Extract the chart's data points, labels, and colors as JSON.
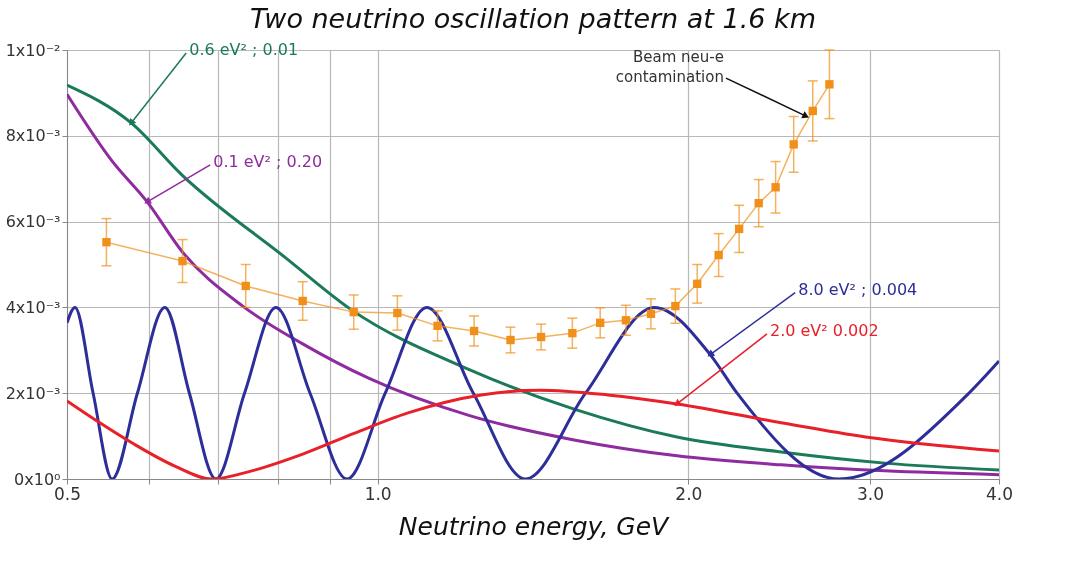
{
  "chart_data": {
    "type": "line",
    "title": "Two neutrino oscillation pattern at 1.6 km",
    "xlabel": "Neutrino energy, GeV",
    "log": "x",
    "grid": true,
    "xlim": [
      0.5,
      4.0
    ],
    "xticks": [
      {
        "value": 0.5,
        "label": "0.5"
      },
      {
        "value": 0.6,
        "label": null
      },
      {
        "value": 0.7,
        "label": null
      },
      {
        "value": 0.8,
        "label": null
      },
      {
        "value": 0.9,
        "label": null
      },
      {
        "value": 1.0,
        "label": "1.0"
      },
      {
        "value": 2.0,
        "label": "2.0"
      },
      {
        "value": 3.0,
        "label": "3.0"
      },
      {
        "value": 4.0,
        "label": "4.0"
      }
    ],
    "ylim": [
      0,
      0.01
    ],
    "yticks": [
      {
        "value": 0,
        "label": "0x10⁰"
      },
      {
        "value": 0.002,
        "label": "2x10⁻³"
      },
      {
        "value": 0.004,
        "label": "4x10⁻³"
      },
      {
        "value": 0.006,
        "label": "6x10⁻³"
      },
      {
        "value": 0.008,
        "label": "8x10⁻³"
      },
      {
        "value": 0.01,
        "label": "1x10⁻²"
      }
    ],
    "series": [
      {
        "name": "0.6 eV² ; 0.01",
        "marker": "none",
        "color": "#1b7a58",
        "x": [
          0.5,
          0.577,
          0.646,
          0.815,
          0.941,
          1.23,
          1.55,
          1.95,
          2.46,
          3.1,
          4.0
        ],
        "values": [
          0.00918,
          0.0083,
          0.00709,
          0.00515,
          0.00396,
          0.00254,
          0.00163,
          0.00098,
          0.00063,
          0.00037,
          0.00021
        ]
      },
      {
        "name": "0.1 eV² ; 0.20",
        "marker": "none",
        "color": "#8e2b9e",
        "x": [
          0.5,
          0.553,
          0.598,
          0.646,
          0.74,
          0.846,
          0.98,
          1.23,
          1.55,
          1.95,
          2.46,
          3.1,
          4.0
        ],
        "values": [
          0.00897,
          0.00741,
          0.00646,
          0.00531,
          0.00403,
          0.00315,
          0.00235,
          0.00147,
          0.00091,
          0.00054,
          0.00033,
          0.00019,
          0.0001
        ]
      },
      {
        "name": "8.0 eV² ; 0.004",
        "marker": "none",
        "color": "#2e2e9a",
        "x": [
          0.5,
          0.509,
          0.53,
          0.553,
          0.585,
          0.622,
          0.657,
          0.697,
          0.743,
          0.797,
          0.86,
          0.934,
          1.017,
          1.116,
          1.238,
          1.39,
          1.59,
          1.854,
          2.1,
          2.23,
          2.8,
          3.74,
          4.0
        ],
        "values": [
          0.00364,
          0.004,
          0.002,
          0.0,
          0.002,
          0.004,
          0.002,
          0.0,
          0.002,
          0.004,
          0.002,
          0.0,
          0.002,
          0.004,
          0.002,
          0.0,
          0.002,
          0.004,
          0.0029,
          0.002,
          0.0,
          0.002,
          0.00275
        ]
      },
      {
        "name": "2.0 eV² 0.002",
        "marker": "none",
        "color": "#e8202a",
        "x": [
          0.5,
          0.538,
          0.58,
          0.636,
          0.69,
          0.755,
          0.846,
          0.95,
          1.07,
          1.26,
          1.435,
          1.67,
          1.95,
          2.46,
          2.97,
          4.0
        ],
        "values": [
          0.00182,
          0.00131,
          0.00082,
          0.0003,
          0.0,
          0.00019,
          0.00058,
          0.00107,
          0.00154,
          0.00196,
          0.00207,
          0.00196,
          0.00175,
          0.00131,
          0.00098,
          0.00065
        ]
      },
      {
        "marker": "square",
        "color": "#f0901a",
        "x": [
          0.546,
          0.647,
          0.745,
          0.846,
          0.948,
          1.045,
          1.143,
          1.24,
          1.345,
          1.44,
          1.544,
          1.643,
          1.74,
          1.84,
          1.943,
          2.04,
          2.14,
          2.24,
          2.34,
          2.43,
          2.53,
          2.64,
          2.74
        ],
        "values": [
          0.00552,
          0.00508,
          0.0045,
          0.00415,
          0.00389,
          0.00387,
          0.00357,
          0.00345,
          0.00324,
          0.00331,
          0.0034,
          0.00364,
          0.0037,
          0.00385,
          0.00403,
          0.00455,
          0.00522,
          0.00583,
          0.00643,
          0.0068,
          0.0078,
          0.00858,
          0.0092
        ],
        "errors": [
          0.00055,
          0.0005,
          0.0005,
          0.00045,
          0.0004,
          0.0004,
          0.00035,
          0.00035,
          0.0003,
          0.0003,
          0.00035,
          0.00035,
          0.00035,
          0.00035,
          0.0004,
          0.00045,
          0.0005,
          0.00055,
          0.00055,
          0.0006,
          0.00065,
          0.0007,
          0.0008
        ]
      }
    ],
    "annotations": [
      {
        "text": "Beam neu-e\ncontamination",
        "x": 2.6,
        "y": 0.00846
      }
    ]
  }
}
